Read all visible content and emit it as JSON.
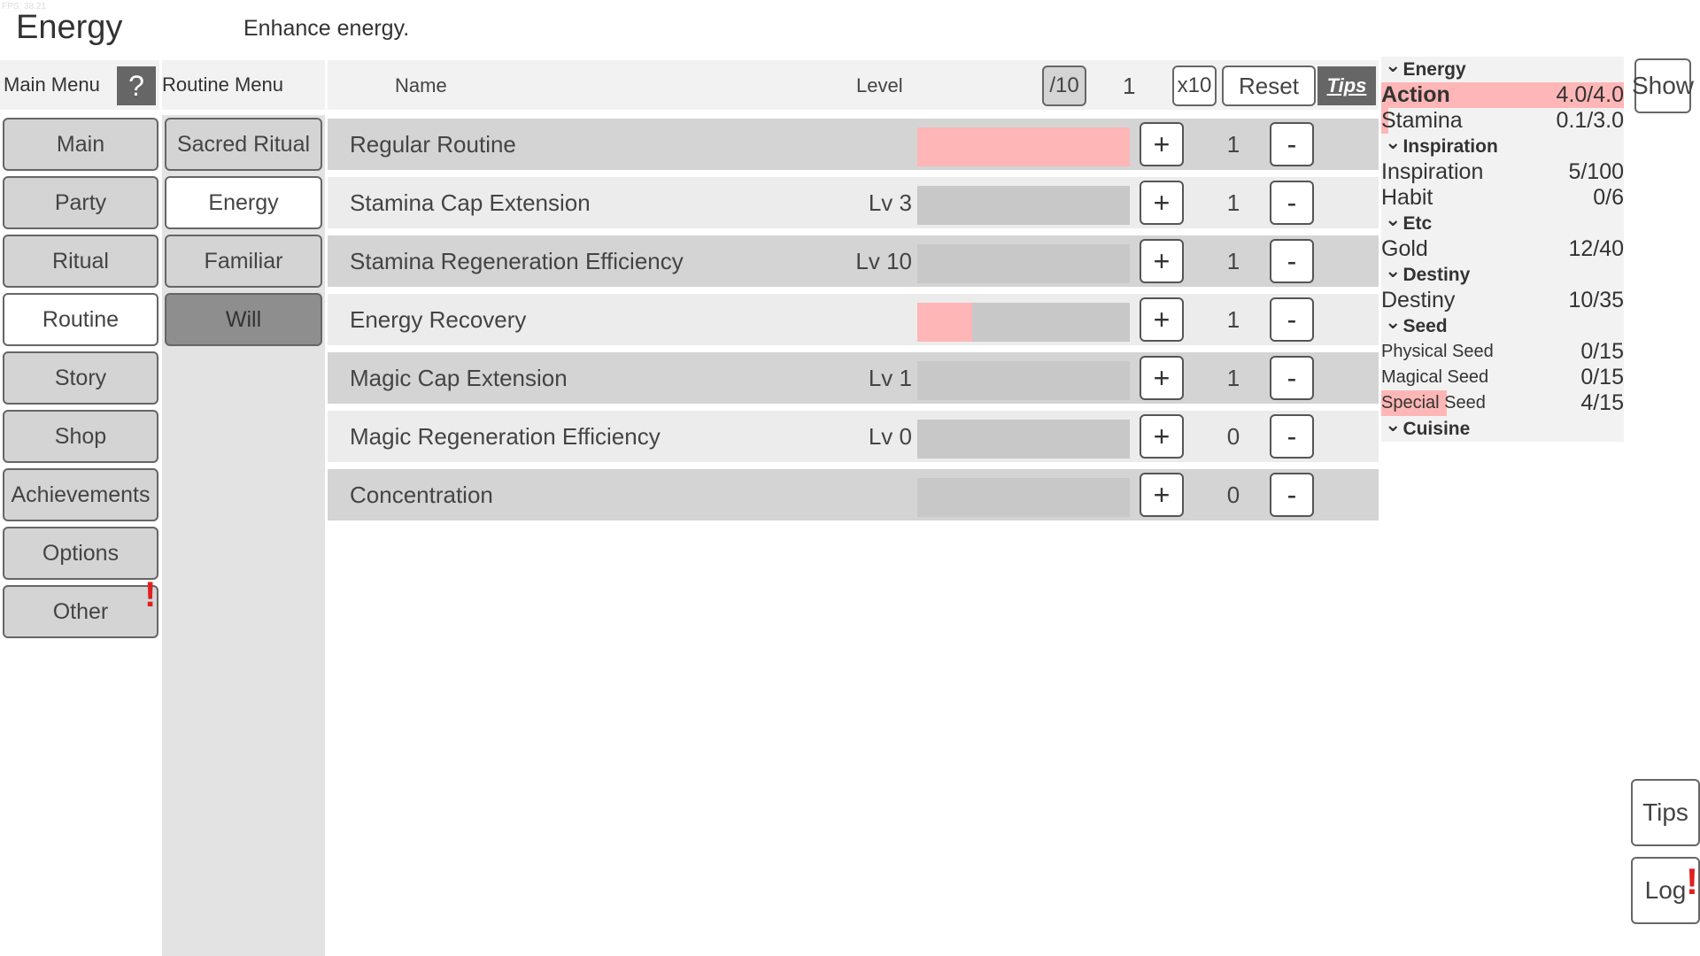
{
  "fps": "FPS: 38.21",
  "header": {
    "title": "Energy",
    "description": "Enhance energy."
  },
  "main_menu": {
    "label": "Main Menu",
    "help": "?",
    "items": [
      "Main",
      "Party",
      "Ritual",
      "Routine",
      "Story",
      "Shop",
      "Achievements",
      "Options",
      "Other"
    ],
    "active": "Routine",
    "alert_item": "Other"
  },
  "routine_menu": {
    "label": "Routine Menu",
    "items": [
      "Sacred Ritual",
      "Energy",
      "Familiar",
      "Will"
    ],
    "active": "Energy"
  },
  "table": {
    "name_header": "Name",
    "level_header": "Level",
    "div_button": "/10",
    "multiplier": "1",
    "mul_button": "x10",
    "reset_button": "Reset",
    "tips_button": "Tips",
    "rows": [
      {
        "name": "Regular Routine",
        "level": "",
        "progress": 1.0,
        "count": "1"
      },
      {
        "name": "Stamina Cap Extension",
        "level": "Lv 3",
        "progress": 0,
        "count": "1"
      },
      {
        "name": "Stamina Regeneration Efficiency",
        "level": "Lv 10",
        "progress": 0,
        "count": "1"
      },
      {
        "name": "Energy Recovery",
        "level": "",
        "progress": 0.26,
        "count": "1"
      },
      {
        "name": "Magic Cap Extension",
        "level": "Lv 1",
        "progress": 0,
        "count": "1"
      },
      {
        "name": "Magic Regeneration Efficiency",
        "level": "Lv 0",
        "progress": 0,
        "count": "0"
      },
      {
        "name": "Concentration",
        "level": "",
        "progress": 0,
        "count": "0"
      }
    ],
    "plus": "+",
    "minus": "-"
  },
  "resources": {
    "sections": [
      {
        "title": "Energy",
        "items": [
          {
            "label": "Action",
            "value": "4.0/4.0",
            "fill": 1.0,
            "bold": true
          },
          {
            "label": "Stamina",
            "value": "0.1/3.0",
            "fill": 0.03
          }
        ]
      },
      {
        "title": "Inspiration",
        "items": [
          {
            "label": "Inspiration",
            "value": "5/100",
            "fill": 0
          },
          {
            "label": "Habit",
            "value": "0/6",
            "fill": 0
          }
        ]
      },
      {
        "title": "Etc",
        "items": [
          {
            "label": "Gold",
            "value": "12/40",
            "fill": 0
          }
        ]
      },
      {
        "title": "Destiny",
        "items": [
          {
            "label": "Destiny",
            "value": "10/35",
            "fill": 0
          }
        ]
      },
      {
        "title": "Seed",
        "items": [
          {
            "label": "Physical Seed",
            "value": "0/15",
            "fill": 0,
            "small": true
          },
          {
            "label": "Magical Seed",
            "value": "0/15",
            "fill": 0,
            "small": true
          },
          {
            "label": "Special Seed",
            "value": "4/15",
            "fill": 0.27,
            "small": true
          }
        ]
      },
      {
        "title": "Cuisine",
        "items": []
      }
    ]
  },
  "side_buttons": {
    "show": "Show",
    "tips": "Tips",
    "log": "Log"
  },
  "colors": {
    "accent_pink": "#ffb6b6",
    "alert_red": "#e02020"
  }
}
